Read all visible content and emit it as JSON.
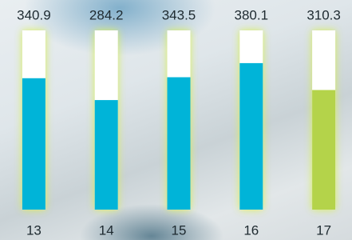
{
  "chart_data": {
    "type": "bar",
    "categories": [
      "13",
      "14",
      "15",
      "16",
      "17"
    ],
    "values": [
      340.9,
      284.2,
      343.5,
      380.1,
      310.3
    ],
    "colors": [
      "#00b4d8",
      "#00b4d8",
      "#00b4d8",
      "#00b4d8",
      "#b4d34a"
    ],
    "ylim": [
      0,
      465
    ]
  }
}
